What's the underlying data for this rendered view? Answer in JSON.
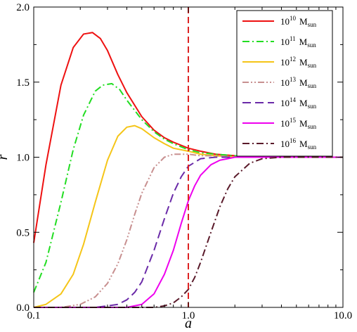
{
  "chart_data": {
    "type": "line",
    "title": "",
    "xlabel": "a",
    "ylabel": "r",
    "xscale": "log",
    "xlim": [
      0.1,
      10.0
    ],
    "ylim": [
      0.0,
      2.0
    ],
    "x_ticks": [
      {
        "value": 0.1,
        "label": "0.1"
      },
      {
        "value": 1.0,
        "label": "1.0"
      },
      {
        "value": 10.0,
        "label": "10.0"
      }
    ],
    "y_ticks": [
      {
        "value": 0.0,
        "label": "0.0"
      },
      {
        "value": 0.5,
        "label": "0.5"
      },
      {
        "value": 1.0,
        "label": "1.0"
      },
      {
        "value": 1.5,
        "label": "1.5"
      },
      {
        "value": 2.0,
        "label": "2.0"
      }
    ],
    "grid": false,
    "legend_position": "top-right",
    "reference_line": {
      "orientation": "vertical",
      "x": 1.0,
      "color": "#dd2222",
      "style": "dashed"
    },
    "series": [
      {
        "name": "10^10 M_sun",
        "base": "10",
        "exponent": "10",
        "unit": "M",
        "unit_sub": "sun",
        "color": "#ee1111",
        "dash": "solid",
        "x": [
          0.1,
          0.12,
          0.15,
          0.18,
          0.21,
          0.24,
          0.27,
          0.3,
          0.35,
          0.4,
          0.5,
          0.6,
          0.7,
          0.8,
          1.0,
          1.2,
          1.5,
          2.0,
          3.0,
          5.0,
          10.0
        ],
        "y": [
          0.43,
          0.95,
          1.48,
          1.73,
          1.82,
          1.83,
          1.79,
          1.71,
          1.55,
          1.43,
          1.27,
          1.18,
          1.13,
          1.1,
          1.06,
          1.04,
          1.02,
          1.01,
          1.0,
          1.0,
          1.0
        ]
      },
      {
        "name": "10^11 M_sun",
        "base": "10",
        "exponent": "11",
        "unit": "M",
        "unit_sub": "sun",
        "color": "#22dd22",
        "dash": "dashdot",
        "x": [
          0.1,
          0.12,
          0.15,
          0.18,
          0.21,
          0.25,
          0.28,
          0.32,
          0.36,
          0.4,
          0.5,
          0.6,
          0.7,
          0.8,
          1.0,
          1.2,
          1.5,
          2.0,
          3.0,
          5.0,
          10.0
        ],
        "y": [
          0.1,
          0.3,
          0.7,
          1.05,
          1.28,
          1.44,
          1.48,
          1.49,
          1.45,
          1.38,
          1.25,
          1.17,
          1.12,
          1.09,
          1.05,
          1.03,
          1.02,
          1.01,
          1.0,
          1.0,
          1.0
        ]
      },
      {
        "name": "10^12 M_sun",
        "base": "10",
        "exponent": "12",
        "unit": "M",
        "unit_sub": "sun",
        "color": "#f5c518",
        "dash": "solid",
        "x": [
          0.1,
          0.12,
          0.15,
          0.18,
          0.21,
          0.25,
          0.3,
          0.35,
          0.4,
          0.45,
          0.5,
          0.6,
          0.7,
          0.8,
          1.0,
          1.2,
          1.5,
          2.0,
          3.0,
          5.0,
          10.0
        ],
        "y": [
          0.0,
          0.02,
          0.09,
          0.22,
          0.42,
          0.7,
          0.98,
          1.14,
          1.2,
          1.21,
          1.19,
          1.13,
          1.09,
          1.06,
          1.04,
          1.02,
          1.01,
          1.0,
          1.0,
          1.0,
          1.0
        ]
      },
      {
        "name": "10^13 M_sun",
        "base": "10",
        "exponent": "13",
        "unit": "M",
        "unit_sub": "sun",
        "color": "#c89090",
        "dash": "dashdotdot",
        "x": [
          0.1,
          0.15,
          0.2,
          0.25,
          0.3,
          0.35,
          0.4,
          0.45,
          0.5,
          0.6,
          0.7,
          0.8,
          1.0,
          1.2,
          1.5,
          2.0,
          3.0,
          5.0,
          10.0
        ],
        "y": [
          0.0,
          0.0,
          0.02,
          0.07,
          0.16,
          0.29,
          0.45,
          0.62,
          0.76,
          0.93,
          1.0,
          1.02,
          1.02,
          1.01,
          1.01,
          1.0,
          1.0,
          1.0,
          1.0
        ]
      },
      {
        "name": "10^14 M_sun",
        "base": "10",
        "exponent": "14",
        "unit": "M",
        "unit_sub": "sun",
        "color": "#6a2aa8",
        "dash": "longdash",
        "x": [
          0.1,
          0.2,
          0.25,
          0.3,
          0.35,
          0.4,
          0.45,
          0.5,
          0.6,
          0.7,
          0.8,
          0.9,
          1.0,
          1.2,
          1.5,
          2.0,
          3.0,
          5.0,
          10.0
        ],
        "y": [
          0.0,
          0.0,
          0.0,
          0.01,
          0.02,
          0.05,
          0.1,
          0.17,
          0.38,
          0.59,
          0.76,
          0.87,
          0.94,
          0.99,
          1.0,
          1.0,
          1.0,
          1.0,
          1.0
        ]
      },
      {
        "name": "10^15 M_sun",
        "base": "10",
        "exponent": "15",
        "unit": "M",
        "unit_sub": "sun",
        "color": "#ee00ee",
        "dash": "solid",
        "x": [
          0.1,
          0.3,
          0.4,
          0.5,
          0.6,
          0.7,
          0.8,
          0.9,
          1.0,
          1.1,
          1.2,
          1.4,
          1.6,
          1.8,
          2.0,
          2.5,
          3.0,
          5.0,
          10.0
        ],
        "y": [
          0.0,
          0.0,
          0.0,
          0.02,
          0.09,
          0.22,
          0.38,
          0.56,
          0.71,
          0.81,
          0.88,
          0.95,
          0.98,
          0.99,
          1.0,
          1.0,
          1.0,
          1.0,
          1.0
        ]
      },
      {
        "name": "10^16 M_sun",
        "base": "10",
        "exponent": "16",
        "unit": "M",
        "unit_sub": "sun",
        "color": "#5a1a2a",
        "dash": "dashdot",
        "x": [
          0.1,
          0.5,
          0.6,
          0.7,
          0.8,
          0.9,
          1.0,
          1.1,
          1.2,
          1.4,
          1.6,
          1.8,
          2.0,
          2.5,
          3.0,
          4.0,
          5.0,
          10.0
        ],
        "y": [
          0.0,
          0.0,
          0.0,
          0.01,
          0.03,
          0.07,
          0.12,
          0.2,
          0.3,
          0.5,
          0.67,
          0.79,
          0.87,
          0.96,
          0.99,
          1.0,
          1.0,
          1.0
        ]
      }
    ]
  }
}
